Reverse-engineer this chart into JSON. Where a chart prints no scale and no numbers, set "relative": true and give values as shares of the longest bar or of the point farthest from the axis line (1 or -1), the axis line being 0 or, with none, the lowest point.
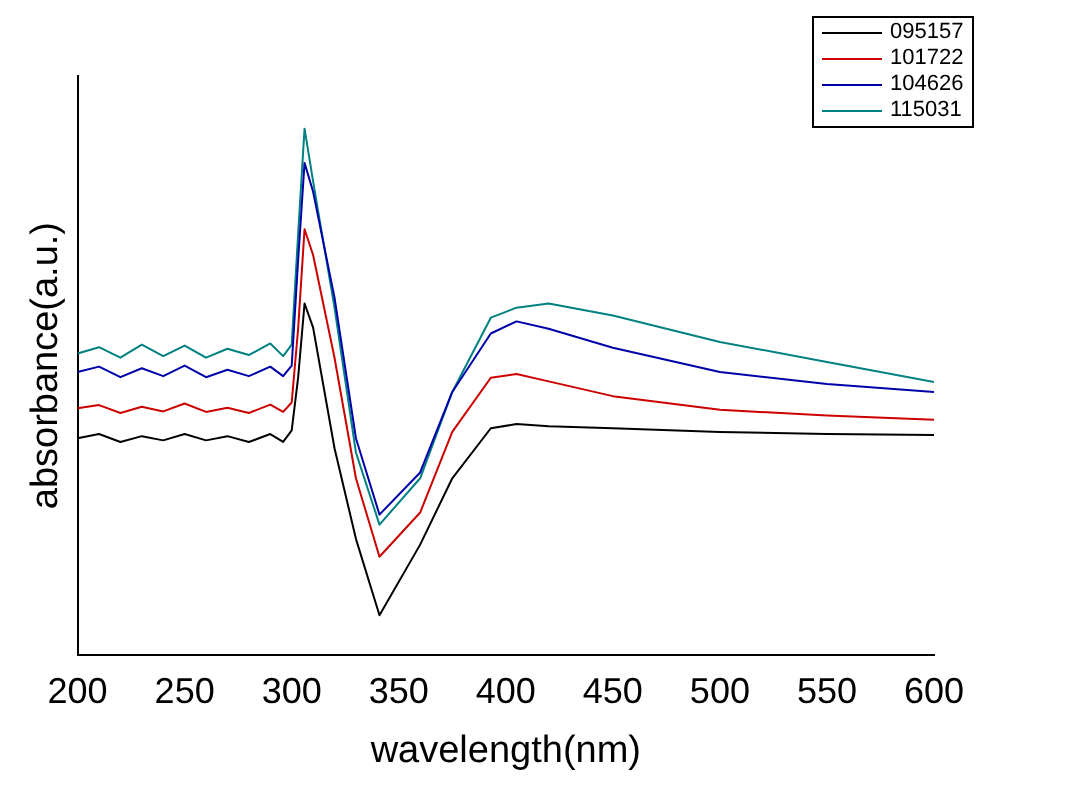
{
  "chart_data": {
    "type": "line",
    "xlabel": "wavelength(nm)",
    "ylabel": "absorbance(a.u.)",
    "relative": true,
    "xlim": [
      200,
      600
    ],
    "xticks": [
      200,
      250,
      300,
      350,
      400,
      450,
      500,
      550,
      600
    ],
    "legend": "top right",
    "marker": "none",
    "line_style": "solid",
    "grid": false,
    "x": [
      200,
      210,
      220,
      230,
      240,
      250,
      260,
      270,
      280,
      290,
      296,
      300,
      303,
      306,
      310,
      320,
      330,
      341,
      360,
      375,
      393,
      405,
      420,
      450,
      500,
      550,
      600
    ],
    "series": [
      {
        "name": "095157",
        "color": "#000000",
        "values": [
          0.412,
          0.42,
          0.405,
          0.416,
          0.408,
          0.42,
          0.408,
          0.416,
          0.405,
          0.42,
          0.405,
          0.427,
          0.527,
          0.668,
          0.622,
          0.393,
          0.221,
          0.076,
          0.21,
          0.336,
          0.431,
          0.439,
          0.435,
          0.431,
          0.424,
          0.42,
          0.418
        ]
      },
      {
        "name": "101722",
        "color": "#cc0000",
        "values": [
          0.469,
          0.475,
          0.46,
          0.472,
          0.463,
          0.478,
          0.462,
          0.47,
          0.46,
          0.476,
          0.462,
          0.48,
          0.62,
          0.809,
          0.76,
          0.565,
          0.336,
          0.187,
          0.271,
          0.424,
          0.527,
          0.534,
          0.52,
          0.492,
          0.466,
          0.455,
          0.447
        ]
      },
      {
        "name": "104626",
        "color": "#0000aa",
        "values": [
          0.538,
          0.548,
          0.528,
          0.545,
          0.53,
          0.55,
          0.528,
          0.542,
          0.53,
          0.548,
          0.53,
          0.55,
          0.75,
          0.935,
          0.88,
          0.679,
          0.412,
          0.267,
          0.347,
          0.5,
          0.611,
          0.634,
          0.62,
          0.584,
          0.538,
          0.515,
          0.5
        ]
      },
      {
        "name": "115031",
        "color": "#008080",
        "values": [
          0.573,
          0.585,
          0.565,
          0.59,
          0.568,
          0.588,
          0.565,
          0.582,
          0.57,
          0.592,
          0.568,
          0.59,
          0.8,
          1,
          0.9,
          0.66,
          0.385,
          0.248,
          0.336,
          0.5,
          0.641,
          0.66,
          0.668,
          0.645,
          0.595,
          0.557,
          0.519
        ]
      }
    ]
  }
}
